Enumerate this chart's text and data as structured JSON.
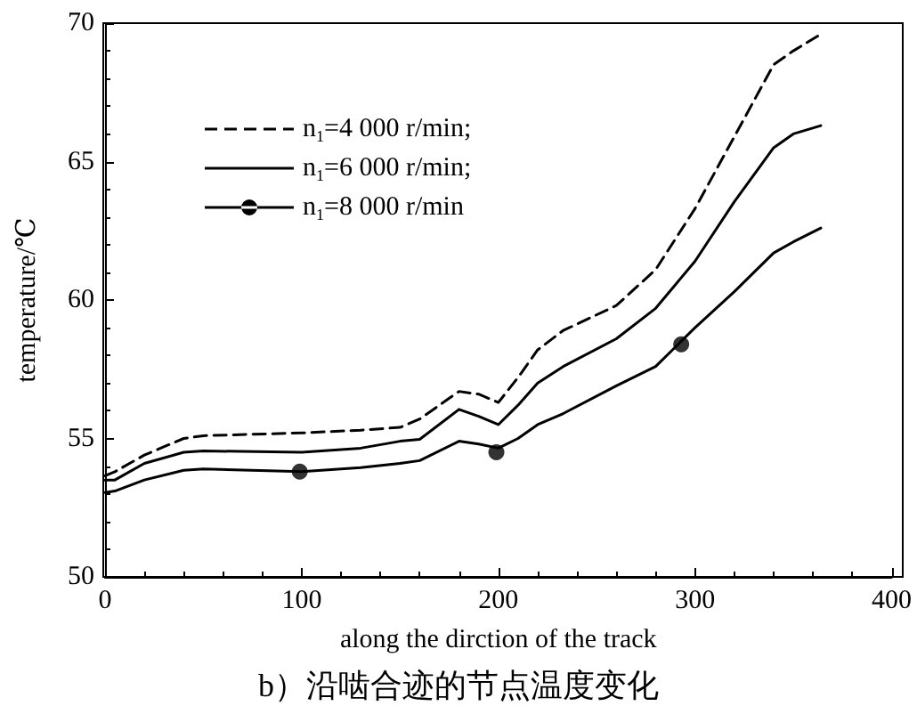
{
  "chart_data": {
    "type": "line",
    "title": "b）沿啮合迹的节点温度变化",
    "xlabel": "along the dirction of the track",
    "ylabel": "temperature/℃",
    "x": [
      0,
      5,
      20,
      40,
      50,
      100,
      130,
      150,
      160,
      180,
      190,
      200,
      210,
      220,
      233,
      260,
      280,
      300,
      320,
      340,
      350,
      364
    ],
    "xlim": [
      0,
      400
    ],
    "xticks": [
      0,
      100,
      200,
      300,
      400
    ],
    "ylim": [
      50,
      70
    ],
    "yticks": [
      50,
      55,
      60,
      65,
      70
    ],
    "grid": false,
    "legend": "top left",
    "series": [
      {
        "name": "n$_{1}$=4 000 r/min;",
        "color": "#000000",
        "line_style": "dashed",
        "values": [
          53.65,
          53.8,
          54.4,
          55.0,
          55.1,
          55.2,
          55.3,
          55.4,
          55.7,
          56.7,
          56.6,
          56.3,
          57.2,
          58.2,
          58.9,
          59.8,
          61.1,
          63.3,
          65.9,
          68.5,
          69.0,
          69.6
        ]
      },
      {
        "name": "n$_{1}$=6 000 r/min;",
        "color": "#000000",
        "line_style": "solid",
        "values": [
          53.5,
          53.5,
          54.1,
          54.5,
          54.55,
          54.5,
          54.65,
          54.9,
          54.97,
          56.05,
          55.8,
          55.5,
          56.2,
          57.0,
          57.6,
          58.6,
          59.7,
          61.4,
          63.55,
          65.5,
          66.0,
          66.3
        ]
      },
      {
        "name": "n$_{1}$=8 000 r/min",
        "color": "#000000",
        "line_style": "solid",
        "values": [
          53.05,
          53.1,
          53.5,
          53.85,
          53.9,
          53.8,
          53.95,
          54.1,
          54.2,
          54.9,
          54.8,
          54.65,
          55.0,
          55.5,
          55.9,
          56.9,
          57.6,
          59.0,
          60.3,
          61.7,
          62.1,
          62.6
        ]
      },
      {
        "type": "scatter",
        "color": "#000000",
        "marker": "circle",
        "x": [
          99,
          199,
          293
        ],
        "values": [
          53.8,
          54.5,
          58.4
        ]
      }
    ]
  }
}
